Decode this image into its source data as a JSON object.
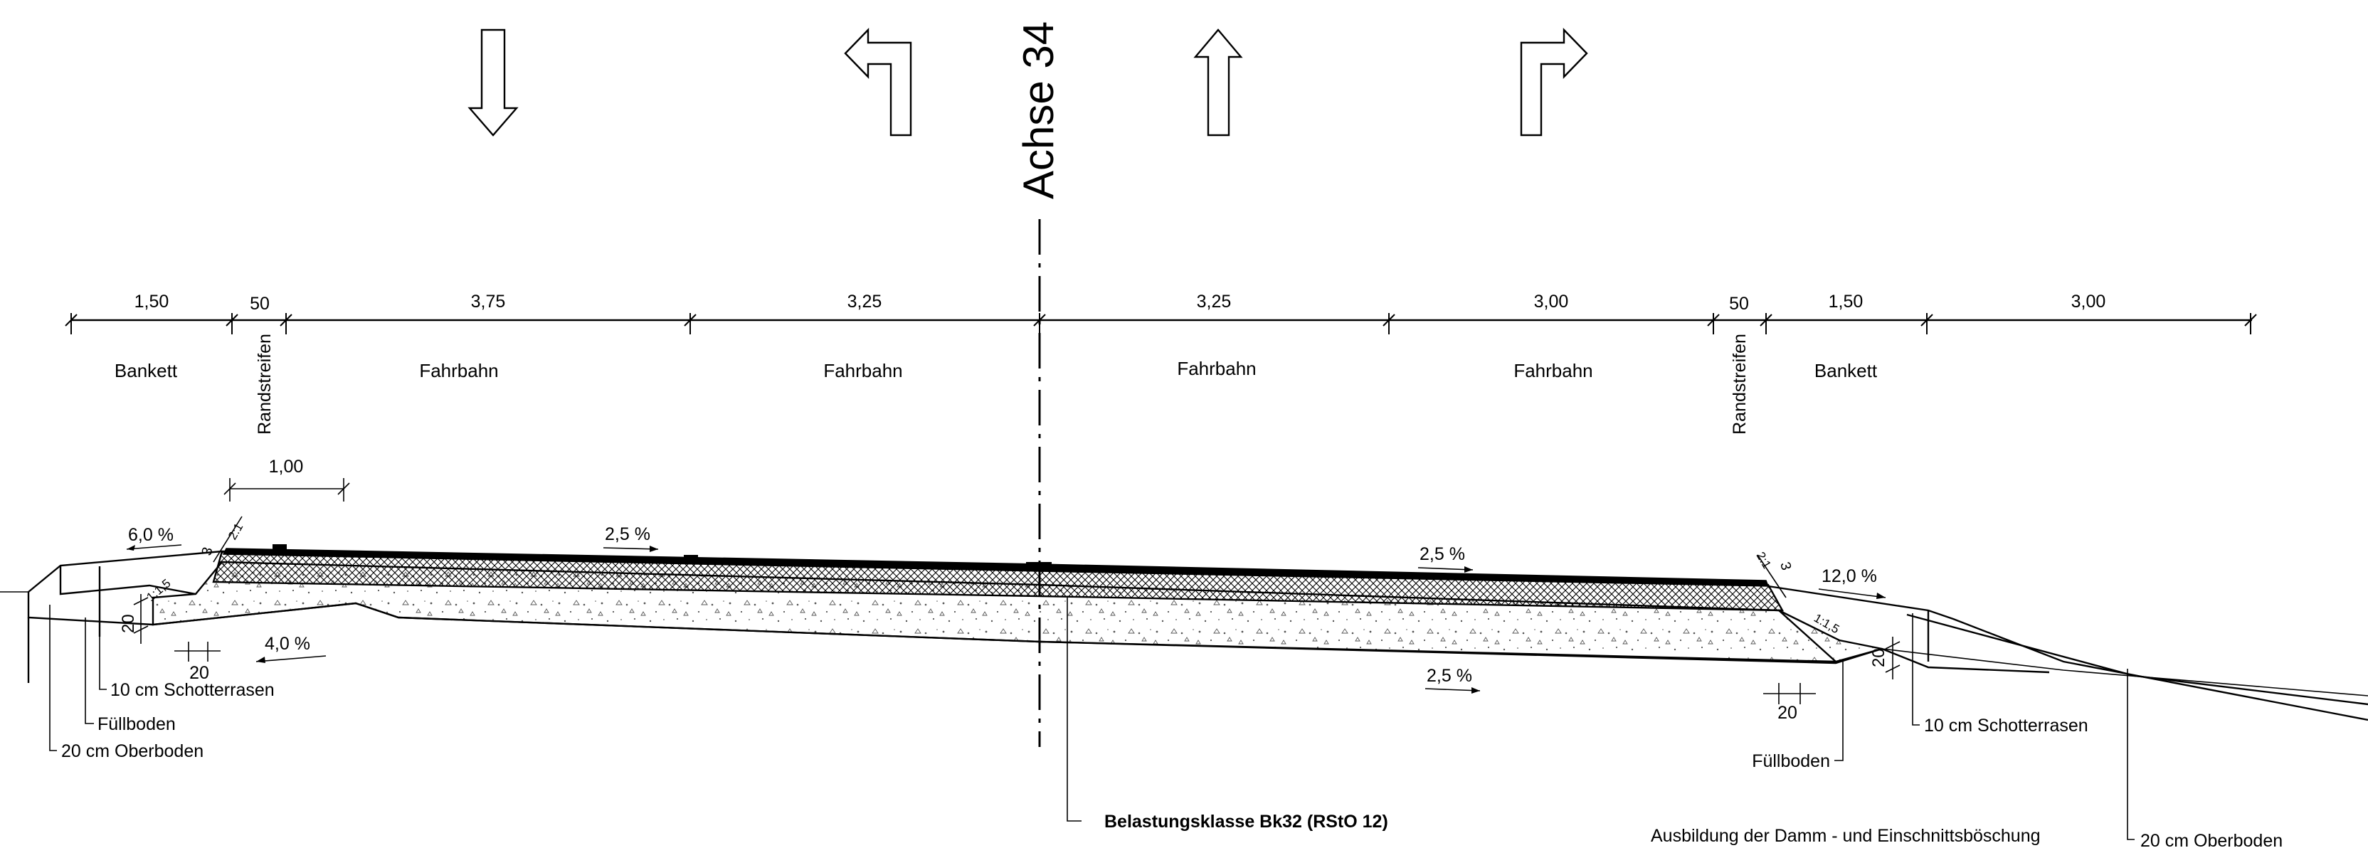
{
  "axis": {
    "label": "Achse 34"
  },
  "dimensions_top": [
    "1,50",
    "50",
    "3,75",
    "3,25",
    "3,25",
    "3,00",
    "50",
    "1,50",
    "3,00"
  ],
  "zones": {
    "bankett_left": "Bankett",
    "randstreifen_left": "Randstreifen",
    "fahrbahn_1": "Fahrbahn",
    "fahrbahn_2": "Fahrbahn",
    "fahrbahn_3": "Fahrbahn",
    "fahrbahn_4": "Fahrbahn",
    "randstreifen_right": "Randstreifen",
    "bankett_right": "Bankett"
  },
  "dimension_shoulder": "1,00",
  "slopes": {
    "bankett_left": "6,0 %",
    "lane_left": "2,5 %",
    "lane_right": "2,5 %",
    "bankett_right": "12,0 %",
    "subgrade_left": "4,0 %",
    "subgrade_right": "2,5 %"
  },
  "small_dims": {
    "left_edge_3": "3",
    "left_ratio_2_1": "2:1",
    "left_ratio_1_15": "1:1,5",
    "left_thickness_20": "20",
    "left_width_20": "20",
    "right_edge_3": "3",
    "right_ratio_2_1": "2:1",
    "right_ratio_1_15": "1:1,5",
    "right_thickness_20": "20",
    "right_width_20": "20"
  },
  "callouts": {
    "schotterrasen_left": "10 cm Schotterrasen",
    "fuellboden_left": "Füllboden",
    "oberboden_left": "20 cm Oberboden",
    "fuellboden_right": "Füllboden",
    "schotterrasen_right": "10 cm Schotterrasen",
    "oberboden_right": "20 cm Oberboden",
    "belastungsklasse": "Belastungsklasse Bk32 (RStO 12)",
    "boeschung": "Ausbildung der Damm - und Einschnittsböschung"
  },
  "icons": [
    "arrow-down-icon",
    "arrow-turn-left-icon",
    "arrow-up-icon",
    "arrow-turn-right-icon"
  ]
}
